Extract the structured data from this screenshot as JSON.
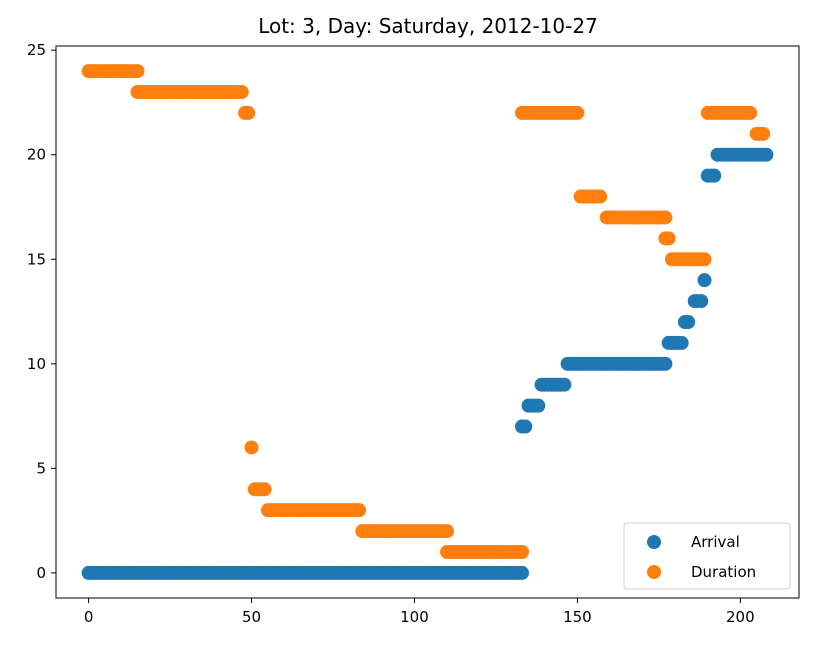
{
  "chart_data": {
    "type": "scatter",
    "title": "Lot: 3, Day: Saturday, 2012-10-27",
    "xlabel": "",
    "ylabel": "",
    "xlim": [
      -10,
      218
    ],
    "ylim": [
      -1.2,
      25.2
    ],
    "xticks": [
      0,
      50,
      100,
      150,
      200
    ],
    "yticks": [
      0,
      5,
      10,
      15,
      20,
      25
    ],
    "grid": false,
    "legend": {
      "position": "bottom-right"
    },
    "series": [
      {
        "name": "Arrival",
        "color": "#1f77b4",
        "runs": [
          {
            "x_start": 0,
            "x_end": 133,
            "y": 0
          },
          {
            "x_start": 133,
            "x_end": 134,
            "y": 7
          },
          {
            "x_start": 135,
            "x_end": 138,
            "y": 8
          },
          {
            "x_start": 139,
            "x_end": 146,
            "y": 9
          },
          {
            "x_start": 147,
            "x_end": 177,
            "y": 10
          },
          {
            "x_start": 178,
            "x_end": 182,
            "y": 11
          },
          {
            "x_start": 183,
            "x_end": 184,
            "y": 12
          },
          {
            "x_start": 186,
            "x_end": 188,
            "y": 13
          },
          {
            "x_start": 189,
            "x_end": 189,
            "y": 14
          },
          {
            "x_start": 190,
            "x_end": 192,
            "y": 19
          },
          {
            "x_start": 193,
            "x_end": 208,
            "y": 20
          }
        ]
      },
      {
        "name": "Duration",
        "color": "#ff7f0e",
        "runs": [
          {
            "x_start": 0,
            "x_end": 15,
            "y": 24
          },
          {
            "x_start": 15,
            "x_end": 47,
            "y": 23
          },
          {
            "x_start": 48,
            "x_end": 49,
            "y": 22
          },
          {
            "x_start": 50,
            "x_end": 50,
            "y": 6
          },
          {
            "x_start": 51,
            "x_end": 54,
            "y": 4
          },
          {
            "x_start": 55,
            "x_end": 83,
            "y": 3
          },
          {
            "x_start": 84,
            "x_end": 110,
            "y": 2
          },
          {
            "x_start": 110,
            "x_end": 133,
            "y": 1
          },
          {
            "x_start": 133,
            "x_end": 150,
            "y": 22
          },
          {
            "x_start": 151,
            "x_end": 157,
            "y": 18
          },
          {
            "x_start": 159,
            "x_end": 177,
            "y": 17
          },
          {
            "x_start": 177,
            "x_end": 178,
            "y": 16
          },
          {
            "x_start": 179,
            "x_end": 189,
            "y": 15
          },
          {
            "x_start": 190,
            "x_end": 203,
            "y": 22
          },
          {
            "x_start": 205,
            "x_end": 207,
            "y": 21
          }
        ]
      }
    ]
  }
}
